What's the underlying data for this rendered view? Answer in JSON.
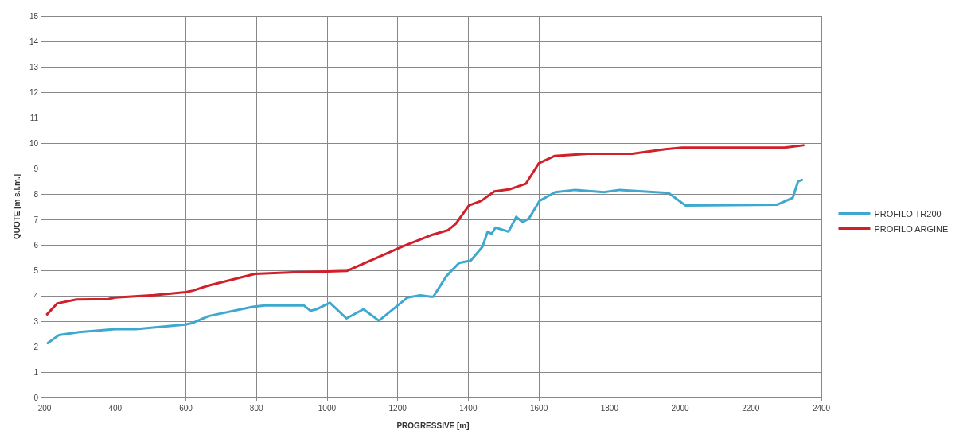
{
  "chart_data": {
    "type": "line",
    "xlabel": "PROGRESSIVE [m]",
    "ylabel": "QUOTE [m s.l.m.]",
    "xlim": [
      200,
      2400
    ],
    "xticks": [
      200,
      400,
      600,
      800,
      1000,
      1200,
      1400,
      1600,
      1800,
      2000,
      2200,
      2400
    ],
    "ylim": [
      0,
      15
    ],
    "yticks": [
      0,
      1,
      2,
      3,
      4,
      5,
      6,
      7,
      8,
      9,
      10,
      11,
      12,
      13,
      14,
      15
    ],
    "grid": true,
    "legend": "right",
    "marker": "none",
    "line_style": "solid",
    "series": [
      {
        "name": "PROFILO TR200",
        "color": "#3ea8cf",
        "x": [
          209,
          240,
          297,
          400,
          459,
          598,
          620,
          664,
          789,
          824,
          934,
          953,
          971,
          1008,
          1055,
          1103,
          1147,
          1228,
          1264,
          1294,
          1301,
          1338,
          1374,
          1407,
          1440,
          1455,
          1466,
          1477,
          1514,
          1536,
          1554,
          1572,
          1602,
          1646,
          1703,
          1785,
          1829,
          1967,
          2015,
          2275,
          2319,
          2334,
          2345
        ],
        "values": [
          2.14,
          2.45,
          2.57,
          2.69,
          2.69,
          2.87,
          2.93,
          3.2,
          3.56,
          3.62,
          3.62,
          3.41,
          3.47,
          3.72,
          3.11,
          3.47,
          3.02,
          3.93,
          4.02,
          3.96,
          3.96,
          4.77,
          5.29,
          5.38,
          5.92,
          6.52,
          6.43,
          6.68,
          6.52,
          7.1,
          6.89,
          7.04,
          7.73,
          8.07,
          8.16,
          8.07,
          8.16,
          8.04,
          7.55,
          7.58,
          7.85,
          8.49,
          8.55
        ]
      },
      {
        "name": "PROFILO ARGINE",
        "color": "#d0202a",
        "x": [
          207,
          236,
          290,
          380,
          400,
          510,
          600,
          620,
          664,
          796,
          905,
          1000,
          1057,
          1211,
          1299,
          1343,
          1365,
          1402,
          1437,
          1474,
          1519,
          1563,
          1600,
          1644,
          1739,
          1864,
          1958,
          2006,
          2295,
          2349
        ],
        "values": [
          3.27,
          3.7,
          3.85,
          3.87,
          3.93,
          4.02,
          4.14,
          4.2,
          4.4,
          4.86,
          4.92,
          4.95,
          4.98,
          5.92,
          6.4,
          6.58,
          6.83,
          7.55,
          7.73,
          8.1,
          8.19,
          8.4,
          9.21,
          9.49,
          9.58,
          9.58,
          9.76,
          9.82,
          9.82,
          9.91
        ]
      }
    ]
  }
}
